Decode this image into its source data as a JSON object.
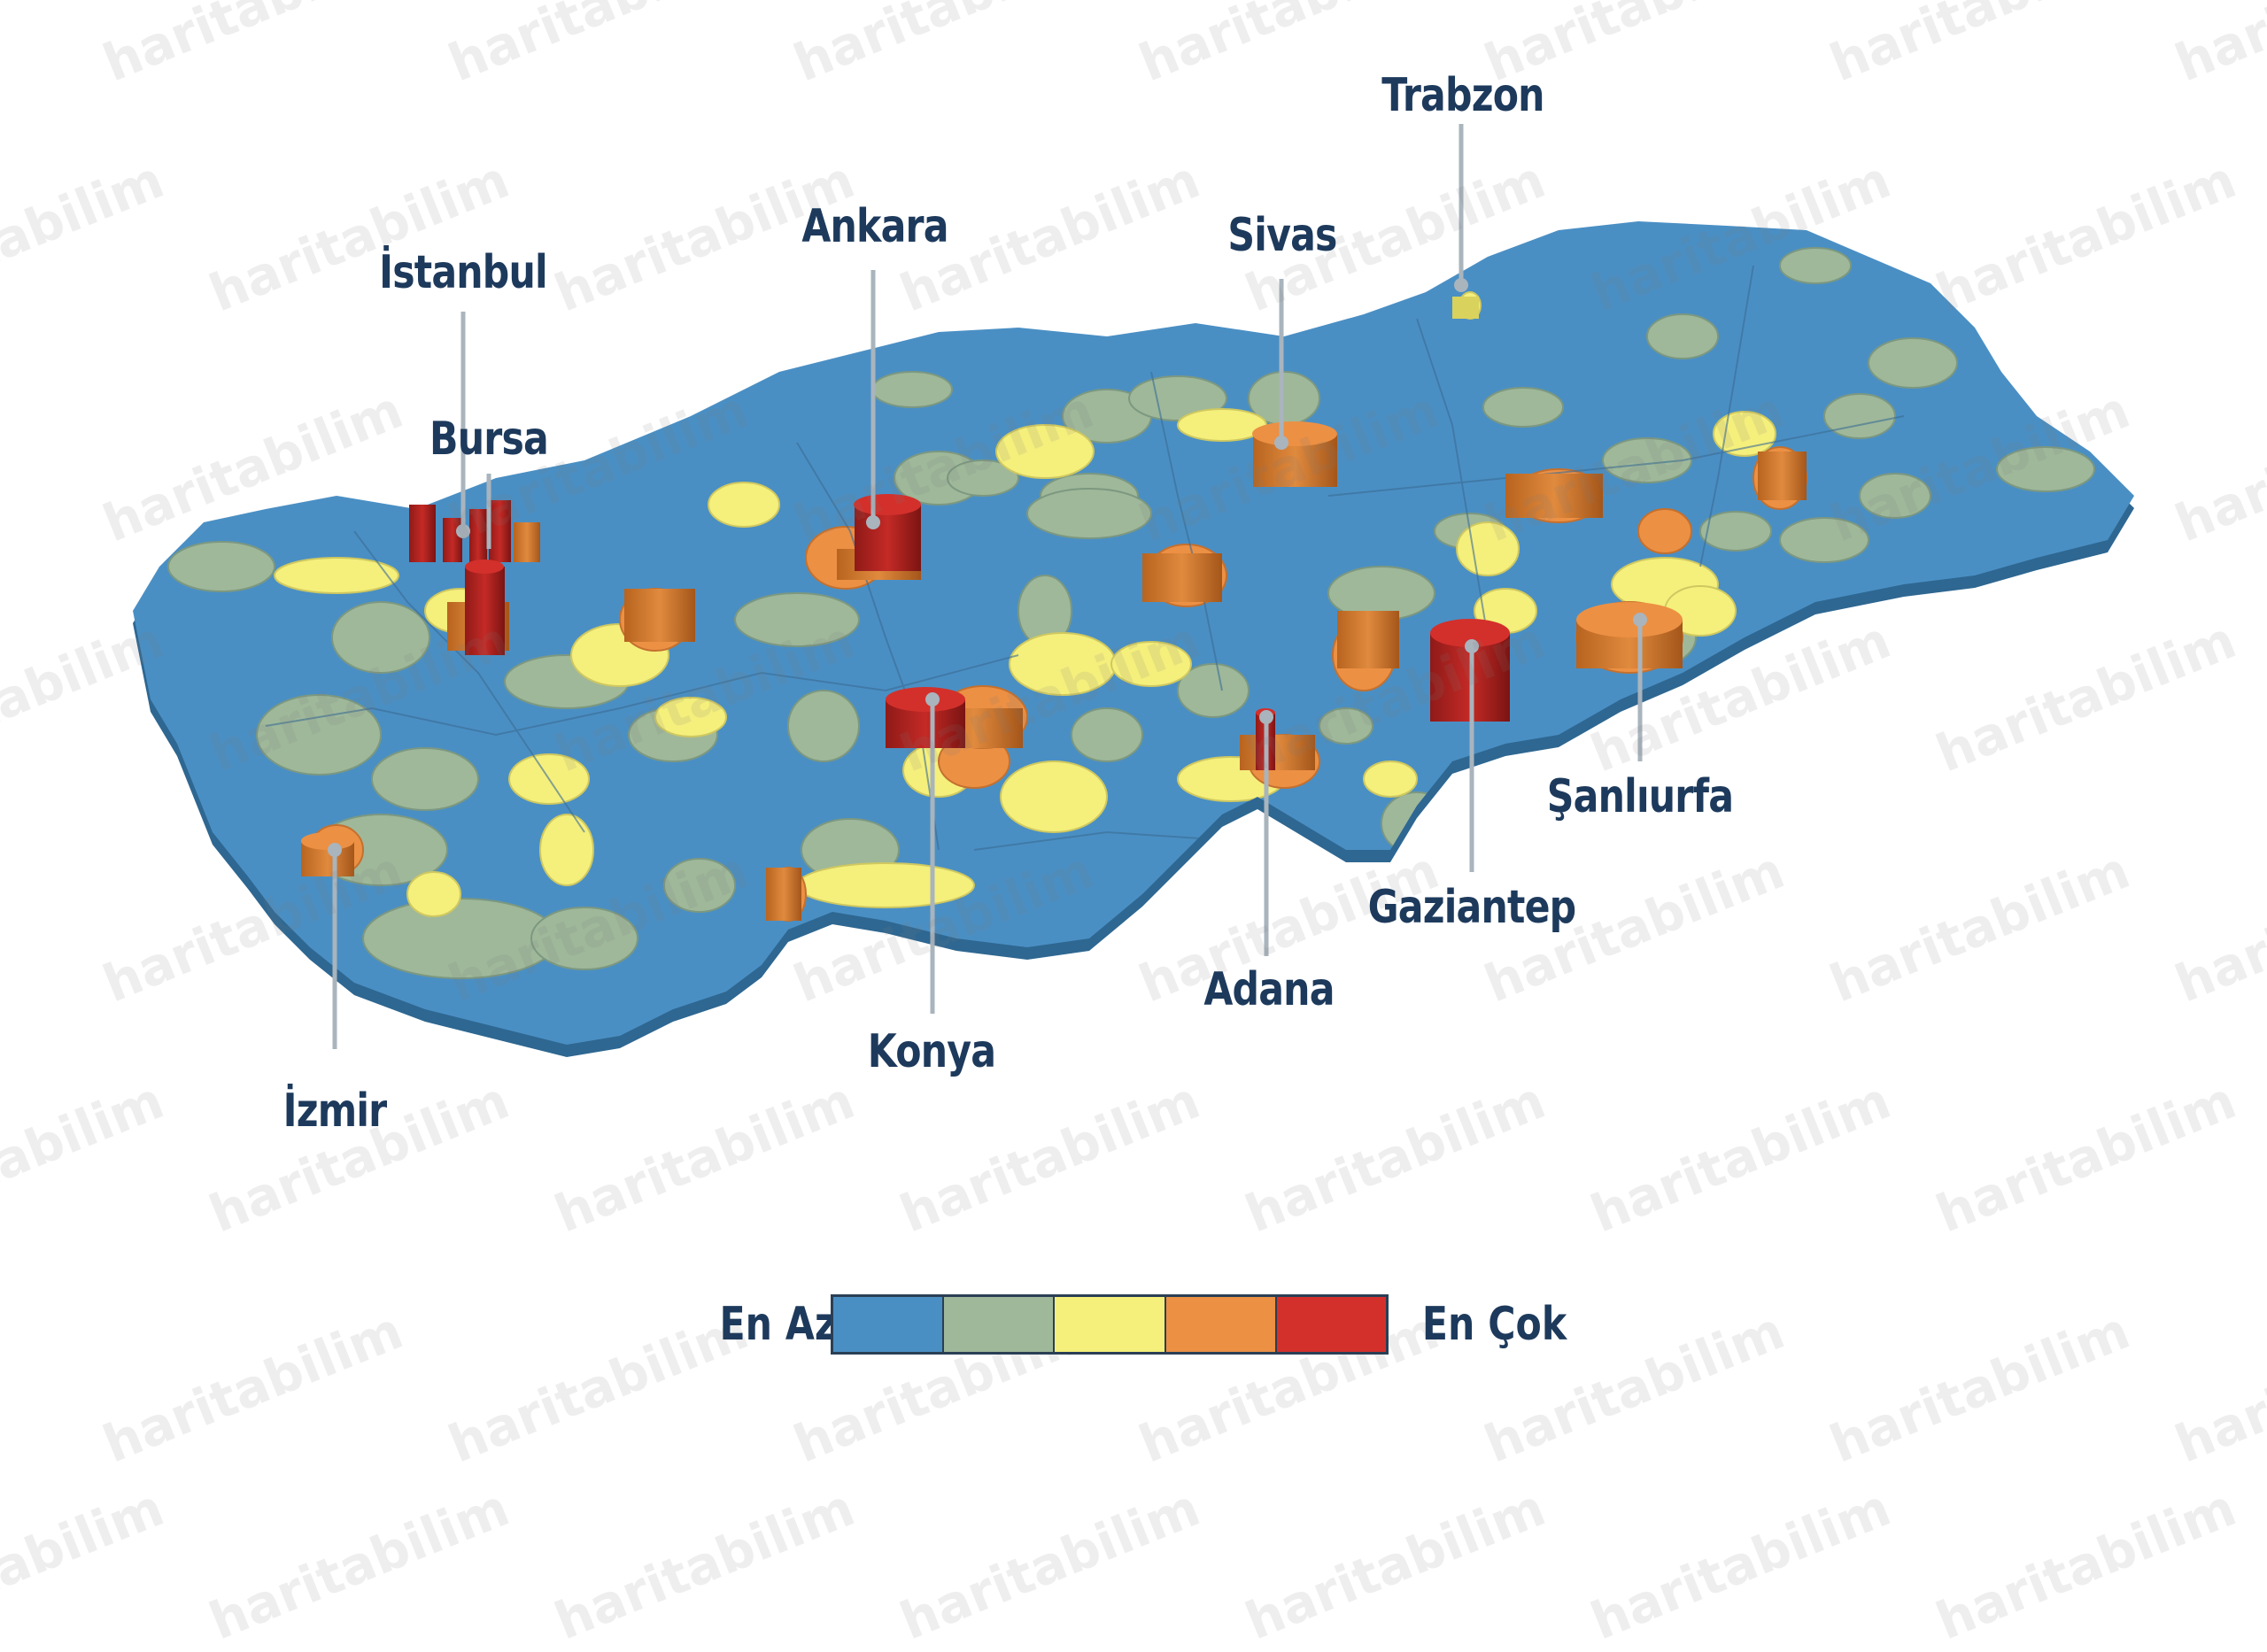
{
  "watermark": {
    "text": "haritabilim"
  },
  "colors": {
    "level1": "#4a8fc4",
    "level2": "#9fb89a",
    "level3": "#f5ef7c",
    "level4": "#ec9044",
    "level5": "#d3302b",
    "label": "#1d3a5c",
    "leader": "#a9b4bd"
  },
  "cities": [
    {
      "id": "istanbul",
      "name": "İstanbul",
      "level": 5
    },
    {
      "id": "bursa",
      "name": "Bursa",
      "level": 5
    },
    {
      "id": "izmir",
      "name": "İzmir",
      "level": 4
    },
    {
      "id": "ankara",
      "name": "Ankara",
      "level": 5
    },
    {
      "id": "konya",
      "name": "Konya",
      "level": 5
    },
    {
      "id": "trabzon",
      "name": "Trabzon",
      "level": 3
    },
    {
      "id": "sivas",
      "name": "Sivas",
      "level": 4
    },
    {
      "id": "adana",
      "name": "Adana",
      "level": 5
    },
    {
      "id": "gaziantep",
      "name": "Gaziantep",
      "level": 5
    },
    {
      "id": "sanliurfa",
      "name": "Şanlıurfa",
      "level": 4
    }
  ],
  "legend": {
    "min_label": "En Az",
    "max_label": "En Çok",
    "levels": 5
  }
}
